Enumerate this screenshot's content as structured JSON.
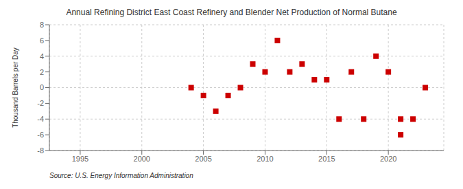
{
  "chart_data": {
    "type": "scatter",
    "title": "Annual Refining District East Coast Refinery and Blender Net Production of Normal Butane",
    "ylabel": "Thousand Barrels per Day",
    "source": "Source: U.S. Energy Information Administration",
    "x": [
      2004,
      2005,
      2006,
      2007,
      2008,
      2009,
      2010,
      2011,
      2012,
      2013,
      2014,
      2015,
      2016,
      2017,
      2018,
      2019,
      2020,
      2021,
      2021,
      2022,
      2023
    ],
    "values": [
      0,
      -1,
      -3,
      -1,
      0,
      3,
      2,
      6,
      2,
      3,
      1,
      1,
      -4,
      2,
      -4,
      4,
      2,
      -4,
      -6,
      -4,
      0
    ],
    "color": "#cc0000",
    "marker": "square",
    "grid": true,
    "xlim": [
      1992.5,
      2024.5
    ],
    "ylim": [
      -8,
      8
    ],
    "xticks": [
      1995,
      2000,
      2005,
      2010,
      2015,
      2020
    ],
    "yticks": [
      -8,
      -6,
      -4,
      -2,
      0,
      2,
      4,
      6,
      8
    ]
  }
}
